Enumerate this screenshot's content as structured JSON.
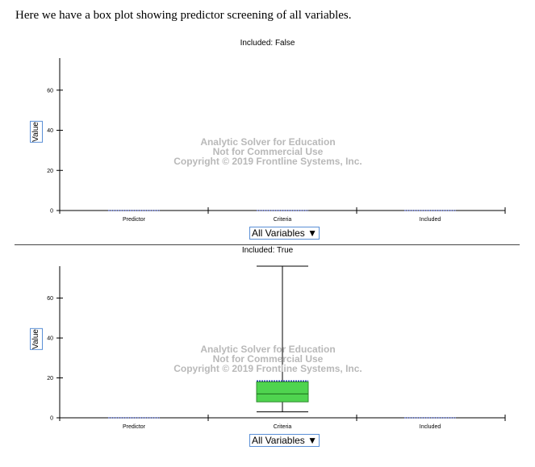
{
  "intro_text": "Here we have a box plot showing predictor screening of all variables.",
  "watermark": {
    "line1": "Analytic Solver for Education",
    "line2": "Not for Commercial Use",
    "line3": "Copyright © 2019 Frontline Systems, Inc."
  },
  "colors": {
    "box_fill": "#4fd44f",
    "median_line": "#1b6e1b",
    "mean_line": "#2a3fb0",
    "axis": "#000000",
    "watermark": "#b9b9b9"
  },
  "chart_data": [
    {
      "type": "boxplot",
      "title": "Included: False",
      "ylabel": "Value",
      "categories": [
        "Predictor",
        "Criteria",
        "Included"
      ],
      "y_ticks": [
        0,
        20,
        40,
        60
      ],
      "ylim": [
        0,
        76
      ],
      "boxes": [
        {
          "category": "Predictor",
          "min": 0,
          "q1": 0,
          "median": 0,
          "q3": 0,
          "max": 0,
          "mean": 0
        },
        {
          "category": "Criteria",
          "min": 0,
          "q1": 0,
          "median": 0,
          "q3": 0,
          "max": 0,
          "mean": 0
        },
        {
          "category": "Included",
          "min": 0,
          "q1": 0,
          "median": 0,
          "q3": 0,
          "max": 0,
          "mean": 0
        }
      ],
      "selector": "All Variables ▼"
    },
    {
      "type": "boxplot",
      "title": "Included: True",
      "ylabel": "Value",
      "categories": [
        "Predictor",
        "Criteria",
        "Included"
      ],
      "y_ticks": [
        0,
        20,
        40,
        60
      ],
      "ylim": [
        0,
        76
      ],
      "boxes": [
        {
          "category": "Predictor",
          "min": 0,
          "q1": 0,
          "median": 0,
          "q3": 0,
          "max": 0,
          "mean": 0
        },
        {
          "category": "Criteria",
          "min": 3,
          "q1": 8,
          "median": 12,
          "q3": 18,
          "max": 76,
          "mean": 18.5
        },
        {
          "category": "Included",
          "min": 0,
          "q1": 0,
          "median": 0,
          "q3": 0,
          "max": 0,
          "mean": 0
        }
      ],
      "selector": "All Variables ▼"
    }
  ]
}
